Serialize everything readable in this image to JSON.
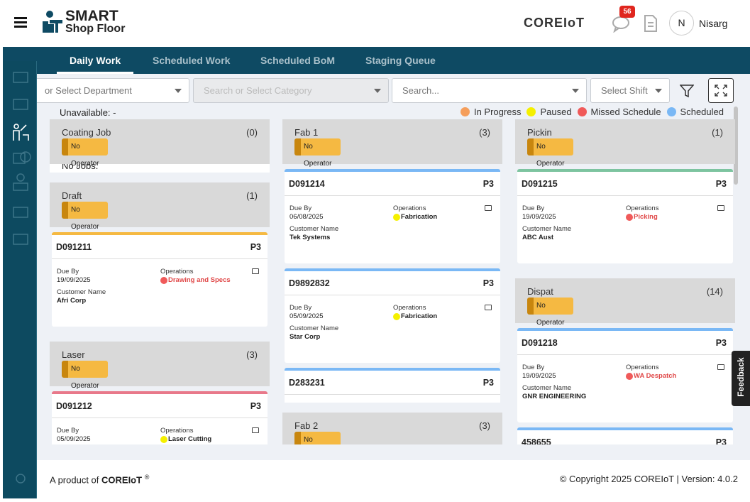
{
  "header": {
    "logo_line1": "SMART",
    "logo_line2": "Shop Floor",
    "brand": "COREIoT",
    "notification_count": "56",
    "user_initial": "N",
    "user_name": "Nisarg"
  },
  "tabs": [
    "Daily Work",
    "Scheduled Work",
    "Scheduled BoM",
    "Staging Queue"
  ],
  "filters": {
    "department": "or Select Department",
    "category": "Search or Select Category",
    "search": "Search...",
    "shift": "Select Shift"
  },
  "unavailable": {
    "label": "Unavailable:",
    "value": "-"
  },
  "legend": [
    {
      "name": "In Progress",
      "color": "#f59e5b"
    },
    {
      "name": "Paused",
      "color": "#f5f000"
    },
    {
      "name": "Missed Schedule",
      "color": "#f05a5a"
    },
    {
      "name": "Scheduled",
      "color": "#7ab8f5"
    }
  ],
  "labels": {
    "no_operator": "No Operator",
    "due_by": "Due By",
    "operations": "Operations",
    "customer_name": "Customer Name",
    "no_jobs": "No Jobs."
  },
  "columns": [
    {
      "groups": [
        {
          "name": "Coating Job",
          "count": "(0)",
          "cards": []
        },
        {
          "name": "Draft",
          "count": "(1)",
          "cards": [
            {
              "id": "D091211",
              "priority": "P3",
              "bar_color": "#f5b942",
              "due": "19/09/2025",
              "operation": "Drawing and Specs",
              "op_color": "#f05a5a",
              "customer": "Afri Corp"
            }
          ]
        },
        {
          "name": "Laser",
          "count": "(3)",
          "cards": [
            {
              "id": "D091212",
              "priority": "P3",
              "bar_color": "#e8788a",
              "due": "05/09/2025",
              "operation": "Laser Cutting",
              "op_color": "#f5f000",
              "customer": ""
            }
          ]
        }
      ]
    },
    {
      "groups": [
        {
          "name": "Fab 1",
          "count": "(3)",
          "cards": [
            {
              "id": "D091214",
              "priority": "P3",
              "bar_color": "#7ab8f5",
              "due": "06/08/2025",
              "operation": "Fabrication",
              "op_color": "#f5f000",
              "customer": "Tek Systems"
            },
            {
              "id": "D9892832",
              "priority": "P3",
              "bar_color": "#7ab8f5",
              "due": "05/09/2025",
              "operation": "Fabrication",
              "op_color": "#f5f000",
              "customer": "Star Corp"
            },
            {
              "id": "D283231",
              "priority": "P3",
              "bar_color": "#7ab8f5",
              "due": "",
              "operation": "",
              "op_color": "#f5f000",
              "customer": ""
            }
          ]
        },
        {
          "name": "Fab 2",
          "count": "(3)",
          "cards": []
        }
      ]
    },
    {
      "groups": [
        {
          "name": "Pickin",
          "count": "(1)",
          "cards": [
            {
              "id": "D091215",
              "priority": "P3",
              "bar_color": "#7dc4a0",
              "due": "19/09/2025",
              "operation": "Picking",
              "op_color": "#f05a5a",
              "customer": "ABC Aust"
            }
          ]
        },
        {
          "name": "Dispat",
          "count": "(14)",
          "cards": [
            {
              "id": "D091218",
              "priority": "P3",
              "bar_color": "#7ab8f5",
              "due": "19/09/2025",
              "operation": "WA Despatch",
              "op_color": "#f05a5a",
              "customer": "GNR ENGINEERING"
            },
            {
              "id": "458655",
              "priority": "P3",
              "bar_color": "#7ab8f5",
              "due": "",
              "operation": "",
              "op_color": "#f05a5a",
              "customer": ""
            }
          ]
        }
      ]
    }
  ],
  "feedback": "Feedback",
  "footer": {
    "prefix": "A product of",
    "brand": "COREIoT",
    "mark": "®",
    "copyright": "© Copyright 2025 COREIoT | Version: 4.0.2"
  }
}
